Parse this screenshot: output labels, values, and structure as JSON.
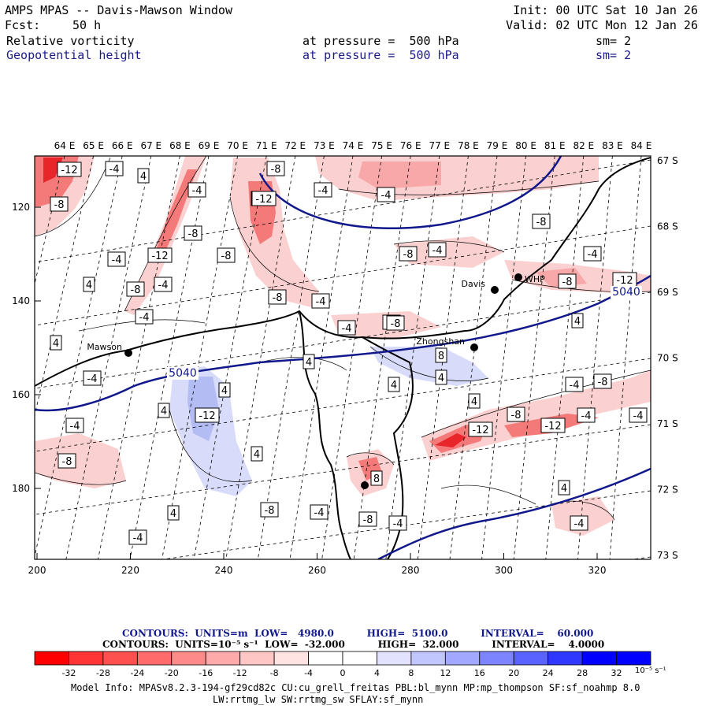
{
  "header": {
    "title": "AMPS MPAS -- Davis-Mawson Window",
    "fcst_label": "Fcst:",
    "fcst_value": "50 h",
    "init": "Init: 00 UTC Sat 10 Jan 26",
    "valid": "Valid: 02 UTC Mon 12 Jan 26",
    "fields": [
      {
        "name": "Relative vorticity",
        "pressure": "at pressure =  500 hPa",
        "sm": "sm= 2"
      },
      {
        "name": "Geopotential height",
        "pressure": "at pressure =  500 hPa",
        "sm": "sm= 2"
      }
    ]
  },
  "map": {
    "top_lon_labels": [
      "64 E",
      "65 E",
      "66 E",
      "67 E",
      "68 E",
      "69 E",
      "70 E",
      "71 E",
      "72 E",
      "73 E",
      "74 E",
      "75 E",
      "76 E",
      "77 E",
      "78 E",
      "79 E",
      "80 E",
      "81 E",
      "82 E",
      "83 E",
      "84 E"
    ],
    "right_lat_labels": [
      "67 S",
      "68 S",
      "69 S",
      "70 S",
      "71 S",
      "72 S",
      "73 S"
    ],
    "left_y_labels": [
      "120",
      "140",
      "160",
      "180"
    ],
    "bottom_x_labels": [
      "200",
      "220",
      "240",
      "260",
      "280",
      "300",
      "320"
    ],
    "stations": [
      {
        "name": "Mawson"
      },
      {
        "name": "Davis"
      },
      {
        "name": "WHP"
      },
      {
        "name": "Zhongshan"
      }
    ],
    "height_contour_labels": [
      "5040",
      "5040"
    ],
    "vorticity_labels": [
      "-12",
      "-4",
      "4",
      "-8",
      "-4",
      "-8",
      "-8",
      "-4",
      "-4",
      "-12",
      "-8",
      "-4",
      "-8",
      "-8",
      "-4",
      "-12",
      "-8",
      "-4",
      "-4",
      "4",
      "-8",
      "-4",
      "-4",
      "-4",
      "-8",
      "-8",
      "-8",
      "-12",
      "-4",
      "4",
      "-4",
      "4",
      "4",
      "8",
      "4",
      "-12",
      "4",
      "-4",
      "-8",
      "-12",
      "-8",
      "4",
      "-12",
      "-4",
      "-4",
      "4",
      "-8",
      "-4",
      "4",
      "-8",
      "-4",
      "-8",
      "-4",
      "-4",
      "4",
      "8",
      "-4",
      "4",
      "4"
    ],
    "colors": {
      "height_line": "#10188c",
      "red_strong": "#e8262a",
      "red_mid": "#f47a7a",
      "red_light": "#fbd0d0",
      "blue_light": "#d8dcfa",
      "blue_mid": "#b4bcf4"
    }
  },
  "contours_info": {
    "line1": "CONTOURS:  UNITS=m  LOW=   4980.0          HIGH=  5100.0          INTERVAL=    60.000",
    "line2": "CONTOURS:  UNITS=10⁻⁵ s⁻¹  LOW=  -32.000          HIGH=  32.000          INTERVAL=    4.0000"
  },
  "colorbar": {
    "labels": [
      "-32",
      "-28",
      "-24",
      "-20",
      "-16",
      "-12",
      "-8",
      "-4",
      "0",
      "4",
      "8",
      "12",
      "16",
      "20",
      "24",
      "28",
      "32"
    ],
    "unit": "10⁻⁵ s⁻¹",
    "colors": [
      "#ff0000",
      "#ff3535",
      "#ff5050",
      "#ff6a6a",
      "#ff8a8a",
      "#ffaaaa",
      "#ffc6c6",
      "#ffe2e2",
      "#ffffff",
      "#ffffff",
      "#e2e2ff",
      "#c2c6ff",
      "#a2a8ff",
      "#7c84ff",
      "#5a62ff",
      "#3038ff",
      "#0000ff"
    ]
  },
  "model_info": {
    "line1": "Model Info: MPASv8.2.3-194-gf29cd82c CU:cu_grell_freitas PBL:bl_mynn MP:mp_thompson SF:sf_noahmp 8.0",
    "line2": "LW:rrtmg_lw SW:rrtmg_sw SFLAY:sf_mynn"
  }
}
